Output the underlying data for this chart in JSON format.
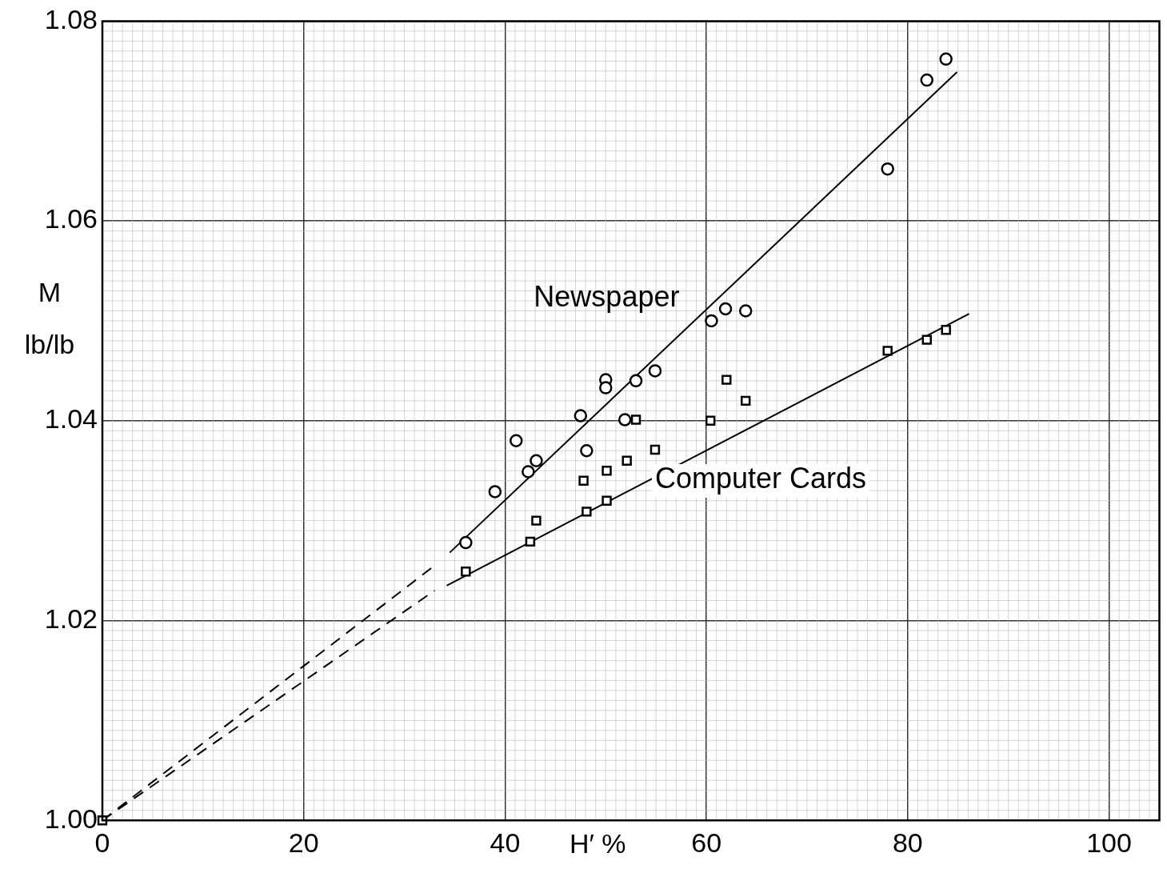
{
  "chart_data": {
    "type": "scatter",
    "xlabel": "H′ %",
    "ylabel": "M\nlb/lb",
    "xlim": [
      0,
      105
    ],
    "ylim": [
      1.0,
      1.08
    ],
    "xticks": [
      0,
      20,
      40,
      60,
      80,
      100
    ],
    "yticks": [
      {
        "value": 1.0,
        "label": "1.00"
      },
      {
        "value": 1.02,
        "label": "1.02"
      },
      {
        "value": 1.04,
        "label": "1.04"
      },
      {
        "value": 1.06,
        "label": "1.06"
      },
      {
        "value": 1.08,
        "label": "1.08"
      }
    ],
    "grid": true,
    "legend": false,
    "series": [
      {
        "name": "Newspaper",
        "type": "scatter",
        "marker": "circle",
        "color": "#000000",
        "x": [
          36.1,
          39.0,
          41.1,
          42.3,
          43.1,
          47.5,
          48.1,
          50.0,
          50.0,
          51.9,
          53.0,
          54.9,
          60.5,
          61.9,
          63.9,
          78.0,
          81.9,
          83.8
        ],
        "values": [
          1.0278,
          1.0329,
          1.038,
          1.0349,
          1.036,
          1.0405,
          1.037,
          1.0441,
          1.0433,
          1.0401,
          1.044,
          1.045,
          1.05,
          1.0512,
          1.051,
          1.0652,
          1.0741,
          1.0762
        ]
      },
      {
        "name": "Computer Cards",
        "type": "scatter",
        "marker": "square",
        "color": "#000000",
        "x": [
          0,
          36.1,
          42.5,
          43.1,
          47.8,
          48.1,
          50.1,
          50.1,
          52.1,
          53.0,
          54.9,
          60.4,
          62.0,
          63.9,
          78.0,
          81.9,
          83.8
        ],
        "values": [
          1.0,
          1.0249,
          1.0279,
          1.03,
          1.034,
          1.0309,
          1.035,
          1.032,
          1.036,
          1.0401,
          1.0371,
          1.04,
          1.0441,
          1.042,
          1.047,
          1.0481,
          1.0491
        ]
      },
      {
        "type": "line",
        "marker": "none",
        "line_style": "solid",
        "color": "#000000",
        "x": [
          34.5,
          84.9
        ],
        "values": [
          1.0268,
          1.0749
        ]
      },
      {
        "type": "line",
        "marker": "none",
        "line_style": "dashed",
        "color": "#000000",
        "x": [
          0,
          33.0
        ],
        "values": [
          1.0,
          1.0255
        ]
      },
      {
        "type": "line",
        "marker": "none",
        "line_style": "solid",
        "color": "#000000",
        "x": [
          34.2,
          86.1
        ],
        "values": [
          1.0235,
          1.0507
        ]
      },
      {
        "type": "line",
        "marker": "none",
        "line_style": "dashed",
        "color": "#000000",
        "x": [
          0,
          33.0
        ],
        "values": [
          1.0,
          1.023
        ]
      }
    ]
  }
}
